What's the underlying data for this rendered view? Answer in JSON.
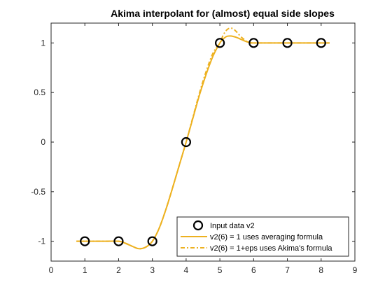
{
  "chart_data": {
    "type": "line",
    "title": "Akima interpolant for (almost) equal side slopes",
    "xlabel": "",
    "ylabel": "",
    "xlim": [
      0,
      9
    ],
    "ylim": [
      -1.2,
      1.2
    ],
    "xticks": [
      0,
      1,
      2,
      3,
      4,
      5,
      6,
      7,
      8,
      9
    ],
    "yticks": [
      -1,
      -0.5,
      0,
      0.5,
      1
    ],
    "ytick_labels": [
      "-1",
      "-0.5",
      "0",
      "0.5",
      "1"
    ],
    "grid": false,
    "legend_position": "bottom-right",
    "colors": {
      "curve": "#EDB120",
      "marker": "#000000",
      "axis": "#262626"
    },
    "series": [
      {
        "name": "Input data v2",
        "style": "markers",
        "x": [
          1,
          2,
          3,
          4,
          5,
          6,
          7,
          8
        ],
        "y": [
          -1,
          -1,
          -1,
          0,
          1,
          1,
          1,
          1
        ]
      },
      {
        "name": "v2(6) = 1 uses averaging formula",
        "style": "solid",
        "x": [
          0.75,
          1,
          1.5,
          2,
          2.2,
          2.4,
          2.6,
          2.8,
          3,
          3.2,
          3.4,
          3.6,
          3.8,
          4,
          4.2,
          4.4,
          4.6,
          4.8,
          5,
          5.1,
          5.2,
          5.3,
          5.4,
          5.5,
          5.6,
          5.7,
          5.8,
          5.9,
          6,
          7,
          8,
          8.25
        ],
        "y": [
          -1,
          -1,
          -1,
          -1,
          -1.02,
          -1.05,
          -1.075,
          -1.06,
          -1,
          -0.87,
          -0.68,
          -0.46,
          -0.23,
          0,
          0.24,
          0.48,
          0.69,
          0.87,
          1,
          1.04,
          1.065,
          1.07,
          1.065,
          1.055,
          1.04,
          1.025,
          1.012,
          1.004,
          1,
          1,
          1,
          1
        ]
      },
      {
        "name": "v2(6) = 1+eps uses Akima's formula",
        "style": "dash-dot",
        "x": [
          0.75,
          1,
          1.5,
          2,
          2.2,
          2.4,
          2.6,
          2.8,
          3,
          3.2,
          3.4,
          3.6,
          3.8,
          4,
          4.2,
          4.4,
          4.6,
          4.8,
          5,
          5.1,
          5.2,
          5.3,
          5.4,
          5.5,
          5.6,
          5.7,
          5.8,
          5.9,
          6,
          7,
          8,
          8.25
        ],
        "y": [
          -1,
          -1,
          -1,
          -1,
          -1.02,
          -1.05,
          -1.075,
          -1.06,
          -1,
          -0.87,
          -0.68,
          -0.46,
          -0.23,
          0,
          0.25,
          0.5,
          0.72,
          0.9,
          1,
          1.08,
          1.13,
          1.15,
          1.14,
          1.11,
          1.07,
          1.04,
          1.015,
          1.004,
          1,
          1,
          1,
          1
        ]
      }
    ]
  }
}
